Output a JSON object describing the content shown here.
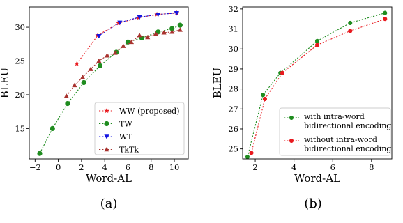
{
  "chart_data": [
    {
      "type": "line",
      "panel_label": "(a)",
      "xlabel": "Word-AL",
      "ylabel": "BLEU",
      "xlim": [
        -2.5,
        11.2
      ],
      "ylim": [
        10.5,
        33.0
      ],
      "xticks": [
        -2,
        0,
        2,
        4,
        6,
        8,
        10
      ],
      "yticks": [
        15,
        20,
        25,
        30
      ],
      "grid": false,
      "legend_position": "lower-right",
      "series": [
        {
          "name": "WW (proposed)",
          "color": "#e8191e",
          "marker": "star",
          "linestyle": "dotted",
          "x": [
            1.6,
            3.4,
            5.2,
            6.9,
            8.5,
            10.2
          ],
          "y": [
            24.6,
            28.8,
            30.6,
            31.4,
            31.9,
            32.1
          ]
        },
        {
          "name": "TW",
          "color": "#1f8c1f",
          "marker": "circle",
          "linestyle": "dotted",
          "x": [
            -1.6,
            -0.5,
            0.8,
            2.2,
            3.6,
            5.0,
            6.0,
            7.2,
            8.6,
            9.8,
            10.5
          ],
          "y": [
            11.3,
            15.0,
            18.7,
            21.8,
            24.3,
            26.3,
            27.8,
            28.4,
            29.3,
            29.8,
            30.3
          ]
        },
        {
          "name": "WT",
          "color": "#1515e0",
          "marker": "triangle-down",
          "linestyle": "dotted",
          "x": [
            3.5,
            5.3,
            7.0,
            8.6,
            10.2
          ],
          "y": [
            28.7,
            30.7,
            31.5,
            31.9,
            32.1
          ]
        },
        {
          "name": "TkTk",
          "color": "#a8322e",
          "marker": "triangle-up",
          "linestyle": "dotted",
          "x": [
            0.7,
            1.4,
            2.1,
            2.8,
            3.5,
            4.2,
            4.9,
            5.6,
            6.3,
            7.0,
            7.7,
            8.4,
            9.1,
            9.8,
            10.5
          ],
          "y": [
            19.8,
            21.4,
            22.6,
            23.8,
            25.0,
            25.8,
            26.2,
            27.2,
            27.8,
            28.8,
            28.5,
            29.0,
            29.2,
            29.3,
            29.6
          ]
        }
      ]
    },
    {
      "type": "line",
      "panel_label": "(b)",
      "xlabel": "Word-AL",
      "ylabel": "BLEU",
      "xlim": [
        1.35,
        9.05
      ],
      "ylim": [
        24.5,
        32.1
      ],
      "xticks": [
        2,
        4,
        6,
        8
      ],
      "yticks": [
        25,
        26,
        27,
        28,
        29,
        30,
        31,
        32
      ],
      "grid": false,
      "legend_position": "lower-right",
      "series": [
        {
          "name": "with intra-word bidirectional encoding",
          "legend_lines": [
            "with intra-word",
            "bidirectional encoding"
          ],
          "color": "#1f8c1f",
          "marker": "circle",
          "linestyle": "dotted",
          "x": [
            1.6,
            2.4,
            3.3,
            5.2,
            6.9,
            8.7
          ],
          "y": [
            24.6,
            27.7,
            28.8,
            30.4,
            31.3,
            31.8
          ]
        },
        {
          "name": "without intra-word bidirectional encoding",
          "legend_lines": [
            "without intra-word",
            "bidirectional encoding"
          ],
          "color": "#e8191e",
          "marker": "circle",
          "linestyle": "dotted",
          "x": [
            1.8,
            2.5,
            3.4,
            5.2,
            6.9,
            8.7
          ],
          "y": [
            24.8,
            27.5,
            28.8,
            30.2,
            30.9,
            31.5
          ]
        }
      ]
    }
  ]
}
